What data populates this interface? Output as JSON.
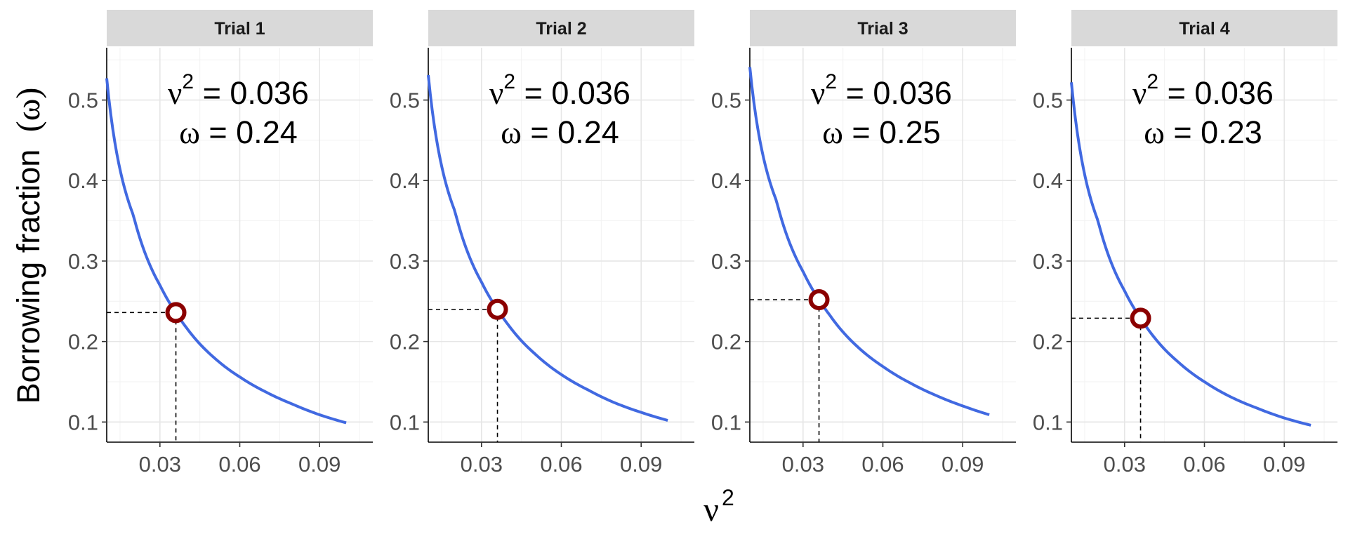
{
  "chart_data": {
    "type": "line",
    "xlabel": {
      "symbol": "ν",
      "sup": "2"
    },
    "ylabel": {
      "text": "Borrowing fraction",
      "symbol": "(ω)"
    },
    "xlim": [
      0.01,
      0.11
    ],
    "ylim": [
      0.075,
      0.565
    ],
    "x_ticks": [
      0.03,
      0.06,
      0.09
    ],
    "x_tick_labels": [
      "0.03",
      "0.06",
      "0.09"
    ],
    "y_ticks": [
      0.1,
      0.2,
      0.3,
      0.4,
      0.5
    ],
    "y_tick_labels": [
      "0.1",
      "0.2",
      "0.3",
      "0.4",
      "0.5"
    ],
    "grid": true,
    "line_color": "#4169E1",
    "point_color": "#8B0000",
    "x_range": [
      0.01,
      0.1
    ],
    "panels": [
      {
        "title": "Trial 1",
        "curve": {
          "x": [
            0.01,
            0.02,
            0.03,
            0.036,
            0.04,
            0.05,
            0.06,
            0.07,
            0.08,
            0.09,
            0.1
          ],
          "y": [
            0.527,
            0.357,
            0.27,
            0.236,
            0.217,
            0.181,
            0.156,
            0.137,
            0.122,
            0.109,
            0.099
          ]
        },
        "point": {
          "x": 0.036,
          "y": 0.236
        },
        "annotation": {
          "nu_sym": "ν",
          "nu_sup": "2",
          "nu_text": " = 0.036",
          "omega_sym": "ω",
          "omega_text": " = 0.24"
        }
      },
      {
        "title": "Trial 2",
        "curve": {
          "x": [
            0.01,
            0.02,
            0.03,
            0.036,
            0.04,
            0.05,
            0.06,
            0.07,
            0.08,
            0.09,
            0.1
          ],
          "y": [
            0.531,
            0.362,
            0.274,
            0.24,
            0.221,
            0.185,
            0.159,
            0.14,
            0.124,
            0.112,
            0.102
          ]
        },
        "point": {
          "x": 0.036,
          "y": 0.24
        },
        "annotation": {
          "nu_sym": "ν",
          "nu_sup": "2",
          "nu_text": " = 0.036",
          "omega_sym": "ω",
          "omega_text": " = 0.24"
        }
      },
      {
        "title": "Trial 3",
        "curve": {
          "x": [
            0.01,
            0.02,
            0.03,
            0.036,
            0.04,
            0.05,
            0.06,
            0.07,
            0.08,
            0.09,
            0.1
          ],
          "y": [
            0.541,
            0.375,
            0.287,
            0.252,
            0.233,
            0.195,
            0.169,
            0.149,
            0.133,
            0.12,
            0.109
          ]
        },
        "point": {
          "x": 0.036,
          "y": 0.252
        },
        "annotation": {
          "nu_sym": "ν",
          "nu_sup": "2",
          "nu_text": " = 0.036",
          "omega_sym": "ω",
          "omega_text": " = 0.25"
        }
      },
      {
        "title": "Trial 4",
        "curve": {
          "x": [
            0.01,
            0.02,
            0.03,
            0.036,
            0.04,
            0.05,
            0.06,
            0.07,
            0.08,
            0.09,
            0.1
          ],
          "y": [
            0.522,
            0.35,
            0.263,
            0.229,
            0.21,
            0.175,
            0.15,
            0.131,
            0.117,
            0.105,
            0.096
          ]
        },
        "point": {
          "x": 0.036,
          "y": 0.229
        },
        "annotation": {
          "nu_sym": "ν",
          "nu_sup": "2",
          "nu_text": " = 0.036",
          "omega_sym": "ω",
          "omega_text": " = 0.23"
        }
      }
    ]
  }
}
